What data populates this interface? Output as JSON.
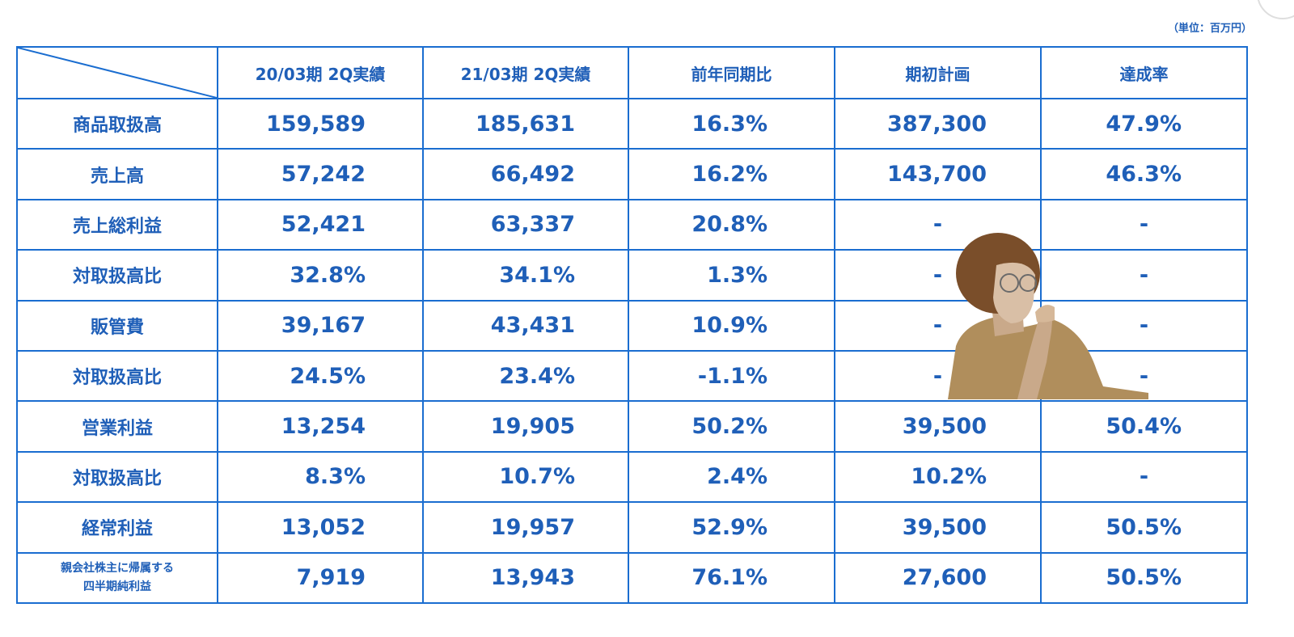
{
  "unit_label": "（単位：百万円）",
  "columns": [
    "20/03期 2Q実績",
    "21/03期 2Q実績",
    "前年同期比",
    "期初計画",
    "達成率"
  ],
  "rows": [
    {
      "label": "商品取扱高",
      "v2003": "159,589",
      "v2103": "185,631",
      "yoy": "16.3%",
      "plan": "387,300",
      "rate": "47.9%"
    },
    {
      "label": "売上高",
      "v2003": "57,242",
      "v2103": "66,492",
      "yoy": "16.2%",
      "plan": "143,700",
      "rate": "46.3%"
    },
    {
      "label": "売上総利益",
      "v2003": "52,421",
      "v2103": "63,337",
      "yoy": "20.8%",
      "plan": "-",
      "rate": "-"
    },
    {
      "label": "対取扱高比",
      "v2003": "32.8%",
      "v2103": "34.1%",
      "yoy": "1.3%",
      "plan": "-",
      "rate": "-"
    },
    {
      "label": "販管費",
      "v2003": "39,167",
      "v2103": "43,431",
      "yoy": "10.9%",
      "plan": "-",
      "rate": "-"
    },
    {
      "label": "対取扱高比",
      "v2003": "24.5%",
      "v2103": "23.4%",
      "yoy": "-1.1%",
      "plan": "-",
      "rate": "-"
    },
    {
      "label": "営業利益",
      "v2003": "13,254",
      "v2103": "19,905",
      "yoy": "50.2%",
      "plan": "39,500",
      "rate": "50.4%"
    },
    {
      "label": "対取扱高比",
      "v2003": "8.3%",
      "v2103": "10.7%",
      "yoy": "2.4%",
      "plan": "10.2%",
      "rate": "-"
    },
    {
      "label": "経常利益",
      "v2003": "13,052",
      "v2103": "19,957",
      "yoy": "52.9%",
      "plan": "39,500",
      "rate": "50.5%"
    },
    {
      "label_line1": "親会社株主に帰属する",
      "label_line2": "四半期純利益",
      "v2003": "7,919",
      "v2103": "13,943",
      "yoy": "76.1%",
      "plan": "27,600",
      "rate": "50.5%"
    }
  ],
  "colors": {
    "text": "#1f5fb8",
    "border": "#1a6dd0",
    "background": "#ffffff"
  },
  "decorations": {
    "overlay_image": "thinking-person-photo"
  }
}
